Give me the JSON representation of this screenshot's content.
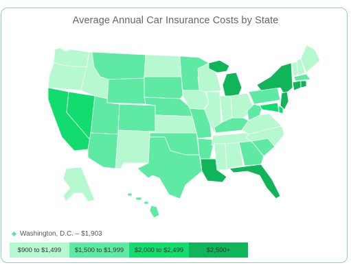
{
  "title": "Average Annual Car Insurance Costs by State",
  "colors": {
    "tier1": "#b6f8cf",
    "tier2": "#5feaa4",
    "tier3": "#13dc6f",
    "tier4": "#10b55a",
    "border": "#ffffff"
  },
  "dc_note": "Washington, D.C. – $1,903",
  "legend": [
    {
      "label": "$900 to $1,499",
      "tier": "tier1"
    },
    {
      "label": "$1,500 to $1,999",
      "tier": "tier2"
    },
    {
      "label": "$2,000 to $2,499",
      "tier": "tier3"
    },
    {
      "label": "$2,500+",
      "tier": "tier4"
    }
  ],
  "states": {
    "WA": "tier1",
    "OR": "tier1",
    "CA": "tier3",
    "NV": "tier3",
    "ID": "tier1",
    "MT": "tier2",
    "WY": "tier2",
    "UT": "tier2",
    "AZ": "tier2",
    "CO": "tier2",
    "NM": "tier1",
    "ND": "tier1",
    "SD": "tier2",
    "NE": "tier2",
    "KS": "tier1",
    "OK": "tier2",
    "TX": "tier2",
    "MN": "tier2",
    "IA": "tier1",
    "MO": "tier2",
    "AR": "tier2",
    "LA": "tier4",
    "WI": "tier1",
    "IL": "tier1",
    "MI": "tier4",
    "IN": "tier1",
    "OH": "tier1",
    "KY": "tier2",
    "TN": "tier1",
    "MS": "tier1",
    "AL": "tier1",
    "GA": "tier2",
    "FL": "tier4",
    "SC": "tier2",
    "NC": "tier1",
    "VA": "tier1",
    "WV": "tier2",
    "PA": "tier2",
    "NY": "tier4",
    "VT": "tier1",
    "NH": "tier1",
    "ME": "tier1",
    "MA": "tier2",
    "RI": "tier4",
    "CT": "tier4",
    "NJ": "tier4",
    "DE": "tier3",
    "MD": "tier3",
    "AK": "tier1",
    "HI": "tier2"
  }
}
